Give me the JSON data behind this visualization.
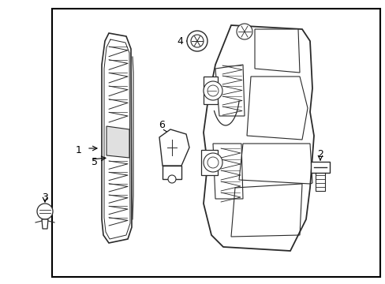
{
  "bg_color": "#ffffff",
  "line_color": "#2a2a2a",
  "border_color": "#000000",
  "text_color": "#000000",
  "border": [
    0.135,
    0.03,
    0.985,
    0.975
  ],
  "figsize": [
    4.89,
    3.6
  ],
  "dpi": 100
}
